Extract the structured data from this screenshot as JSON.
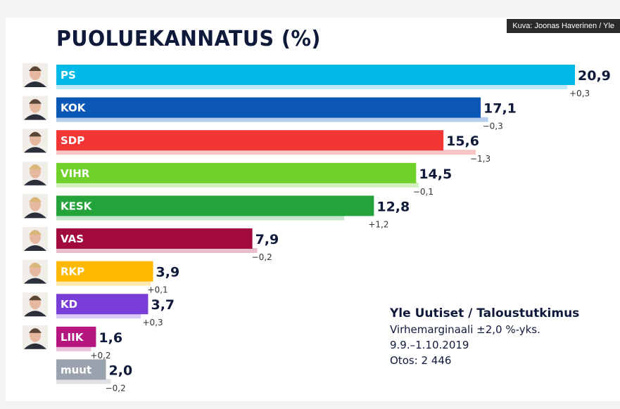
{
  "credit": "Kuva: Joonas Haverinen / Yle",
  "chart_data": {
    "type": "bar",
    "title": "PUOLUEKANNATUS (%)",
    "categories": [
      "PS",
      "KOK",
      "SDP",
      "VIHR",
      "KESK",
      "VAS",
      "RKP",
      "KD",
      "LIIK",
      "muut"
    ],
    "values": [
      20.9,
      17.1,
      15.6,
      14.5,
      12.8,
      7.9,
      3.9,
      3.7,
      1.6,
      2.0
    ],
    "value_labels": [
      "20,9",
      "17,1",
      "15,6",
      "14,5",
      "12,8",
      "7,9",
      "3,9",
      "3,7",
      "1,6",
      "2,0"
    ],
    "changes": [
      0.3,
      -0.3,
      -1.3,
      -0.1,
      1.2,
      -0.2,
      0.1,
      0.3,
      0.2,
      -0.2
    ],
    "change_labels": [
      "+0,3",
      "−0,3",
      "−1,3",
      "−0,1",
      "+1,2",
      "−0,2",
      "+0,1",
      "+0,3",
      "+0,2",
      "−0,2"
    ],
    "colors": [
      "#00b9e8",
      "#0a57b5",
      "#f23535",
      "#6fd12a",
      "#23a33a",
      "#a30a3c",
      "#ffb800",
      "#7a3ed8",
      "#b5157f",
      "#9aa3ad"
    ],
    "prev_colors": [
      "#bfe9f8",
      "#b9cdec",
      "#f6c4c4",
      "#d3f0bd",
      "#c2e6c7",
      "#e8bfcc",
      "#ffe9b0",
      "#d9c9f4",
      "#ecc0dd",
      "#dde1e5"
    ],
    "has_portrait": [
      true,
      true,
      true,
      true,
      true,
      true,
      true,
      true,
      true,
      false
    ],
    "xlim": [
      0,
      21
    ]
  },
  "source": {
    "heading": "Yle Uutiset / Taloustutkimus",
    "margin": "Virhemarginaali ±2,0 %-yks.",
    "dates": "9.9.–1.10.2019",
    "sample": "Otos: 2 446"
  }
}
